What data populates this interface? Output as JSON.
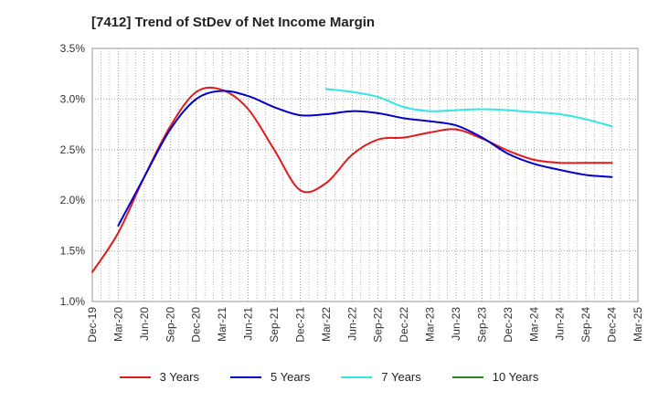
{
  "chart_data": {
    "type": "line",
    "title": "[7412]  Trend of StDev of Net Income Margin",
    "xlabel": "",
    "ylabel": "",
    "x": [
      "Dec-19",
      "Mar-20",
      "Jun-20",
      "Sep-20",
      "Dec-20",
      "Mar-21",
      "Jun-21",
      "Sep-21",
      "Dec-21",
      "Mar-22",
      "Jun-22",
      "Sep-22",
      "Dec-22",
      "Mar-23",
      "Jun-23",
      "Sep-23",
      "Dec-23",
      "Mar-24",
      "Jun-24",
      "Sep-24",
      "Dec-24",
      "Mar-25"
    ],
    "ylim": [
      1.0,
      3.5
    ],
    "yticks": [
      "1.0%",
      "1.5%",
      "2.0%",
      "2.5%",
      "3.0%",
      "3.5%"
    ],
    "grid": true,
    "legend_position": "bottom",
    "series": [
      {
        "name": "3 Years",
        "color": "#e31a1c",
        "values": [
          1.29,
          1.68,
          2.23,
          2.73,
          3.07,
          3.09,
          2.9,
          2.5,
          2.1,
          2.17,
          2.45,
          2.6,
          2.62,
          2.67,
          2.7,
          2.61,
          2.49,
          2.4,
          2.37,
          2.37,
          2.37,
          null
        ]
      },
      {
        "name": "5 Years",
        "color": "#0000cc",
        "values": [
          null,
          1.75,
          2.23,
          2.7,
          3.0,
          3.08,
          3.03,
          2.92,
          2.84,
          2.85,
          2.88,
          2.86,
          2.81,
          2.78,
          2.74,
          2.62,
          2.46,
          2.36,
          2.3,
          2.25,
          2.23,
          null
        ]
      },
      {
        "name": "7 Years",
        "color": "#33e5e5",
        "values": [
          null,
          null,
          null,
          null,
          null,
          null,
          null,
          null,
          null,
          3.1,
          3.07,
          3.02,
          2.92,
          2.88,
          2.89,
          2.9,
          2.89,
          2.87,
          2.85,
          2.8,
          2.73,
          null
        ]
      },
      {
        "name": "10 Years",
        "color": "#228b22",
        "values": [
          null,
          null,
          null,
          null,
          null,
          null,
          null,
          null,
          null,
          null,
          null,
          null,
          null,
          null,
          null,
          null,
          null,
          null,
          null,
          null,
          null,
          null
        ]
      }
    ]
  }
}
